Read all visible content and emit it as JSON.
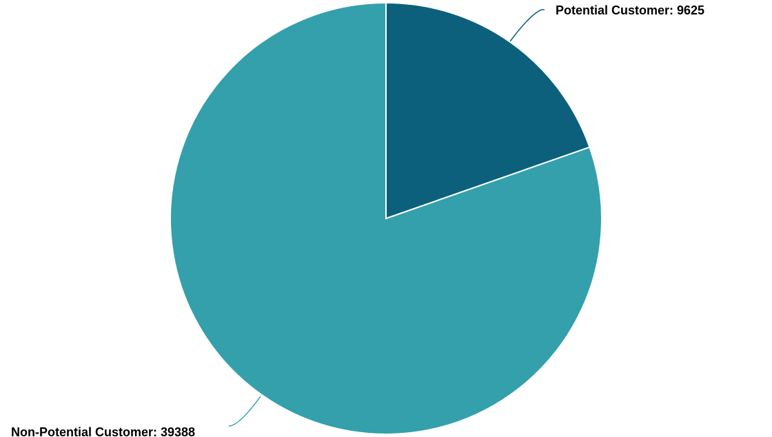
{
  "chart_data": {
    "type": "pie",
    "title": "",
    "slices": [
      {
        "name": "Potential Customer",
        "value": 9625,
        "label": "Potential Customer: 9625",
        "color": "#0c607c"
      },
      {
        "name": "Non-Potential Customer",
        "value": 39388,
        "label": "Non-Potential Customer: 39388",
        "color": "#34a0ac"
      }
    ],
    "start_angle": "12 o'clock",
    "direction": "clockwise",
    "legend": "none",
    "labels": "outside with leader lines"
  }
}
